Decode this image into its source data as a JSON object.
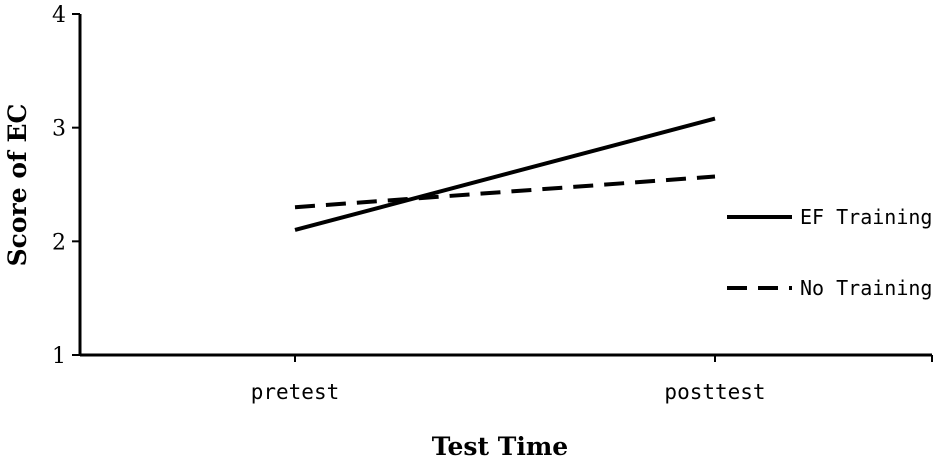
{
  "chart_data": {
    "type": "line",
    "categories": [
      "pretest",
      "posttest"
    ],
    "series": [
      {
        "name": "EF Training",
        "values": [
          2.1,
          3.08
        ],
        "style": "solid",
        "color": "#000000"
      },
      {
        "name": "No Training",
        "values": [
          2.3,
          2.57
        ],
        "style": "dashed",
        "color": "#000000"
      }
    ],
    "title": "",
    "xlabel": "Test Time",
    "ylabel": "Score of EC",
    "ylim": [
      1,
      4
    ],
    "yticks": [
      "1",
      "2",
      "3",
      "4"
    ],
    "grid": false,
    "legend_position": "right"
  }
}
